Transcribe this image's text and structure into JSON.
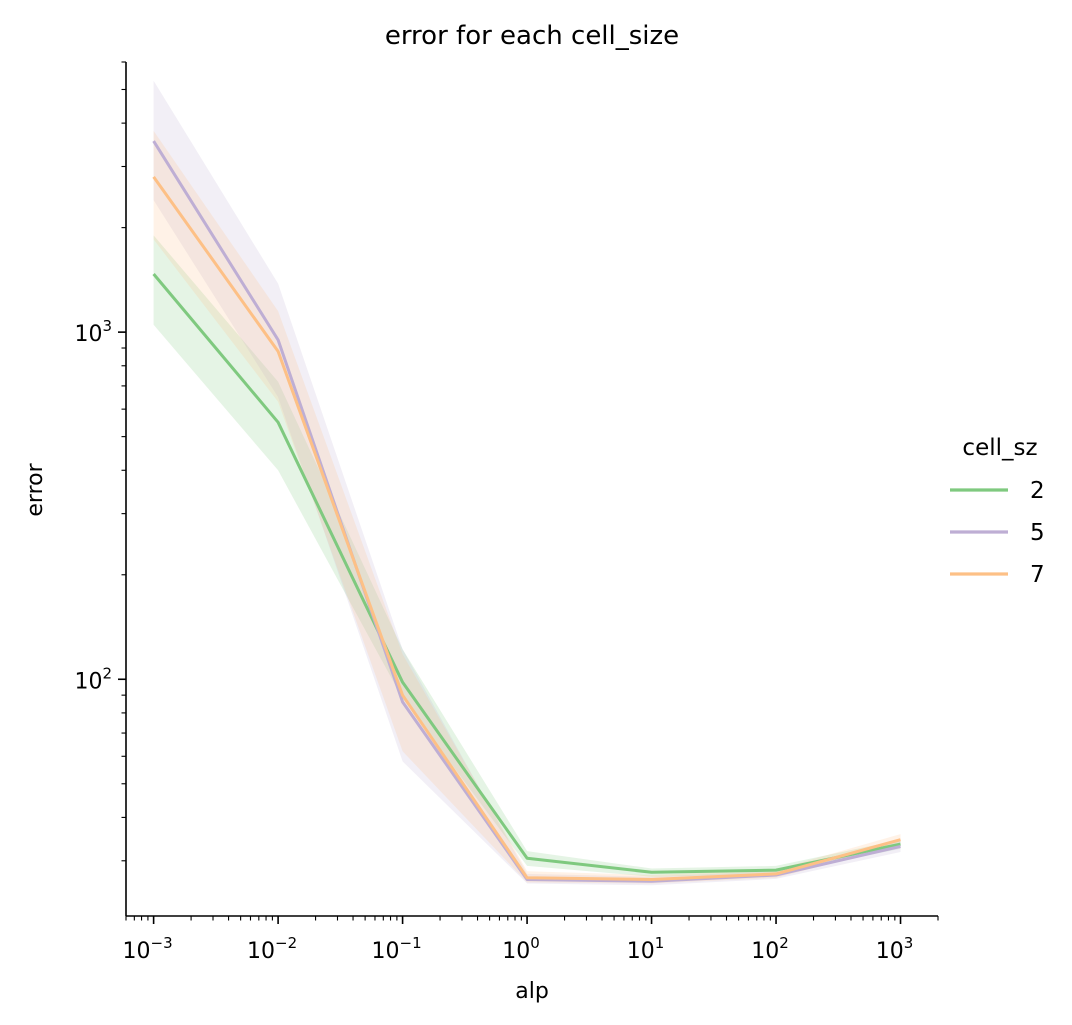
{
  "chart_data": {
    "type": "line",
    "title": "error for each cell_size",
    "xlabel": "alp",
    "ylabel": "error",
    "xscale": "log",
    "yscale": "log",
    "xlim": [
      0.0006,
      2000
    ],
    "ylim": [
      20.8,
      6000
    ],
    "grid": false,
    "legend": {
      "title": "cell_sz",
      "position": "right"
    },
    "x": [
      0.001,
      0.01,
      0.1,
      1,
      10,
      100,
      1000
    ],
    "x_tick_labels": [
      {
        "base": "10",
        "exp": "−3"
      },
      {
        "base": "10",
        "exp": "−2"
      },
      {
        "base": "10",
        "exp": "−1"
      },
      {
        "base": "10",
        "exp": "0"
      },
      {
        "base": "10",
        "exp": "1"
      },
      {
        "base": "10",
        "exp": "2"
      },
      {
        "base": "10",
        "exp": "3"
      }
    ],
    "y_tick_labels": [
      {
        "value": 100,
        "base": "10",
        "exp": "2"
      },
      {
        "value": 1000,
        "base": "10",
        "exp": "3"
      }
    ],
    "series": [
      {
        "name": "2",
        "color": "#7fc97f",
        "values": [
          1470,
          550,
          98,
          30.5,
          27.8,
          28.2,
          33.5
        ],
        "lower": [
          1050,
          400,
          88,
          29.0,
          27.0,
          27.5,
          32.5
        ],
        "upper": [
          1900,
          720,
          122,
          32.0,
          28.5,
          29.0,
          34.5
        ]
      },
      {
        "name": "5",
        "color": "#beaed4",
        "values": [
          3550,
          950,
          86,
          26.5,
          26.2,
          27.3,
          33.0
        ],
        "lower": [
          2400,
          650,
          58,
          25.8,
          25.5,
          26.6,
          31.8
        ],
        "upper": [
          5300,
          1380,
          122,
          27.5,
          27.0,
          28.0,
          34.2
        ]
      },
      {
        "name": "7",
        "color": "#fdc086",
        "values": [
          2800,
          880,
          90,
          26.8,
          26.5,
          27.5,
          34.5
        ],
        "lower": [
          1850,
          630,
          62,
          26.0,
          25.8,
          26.8,
          33.2
        ],
        "upper": [
          3800,
          1150,
          118,
          28.0,
          27.3,
          28.3,
          35.8
        ]
      }
    ]
  }
}
